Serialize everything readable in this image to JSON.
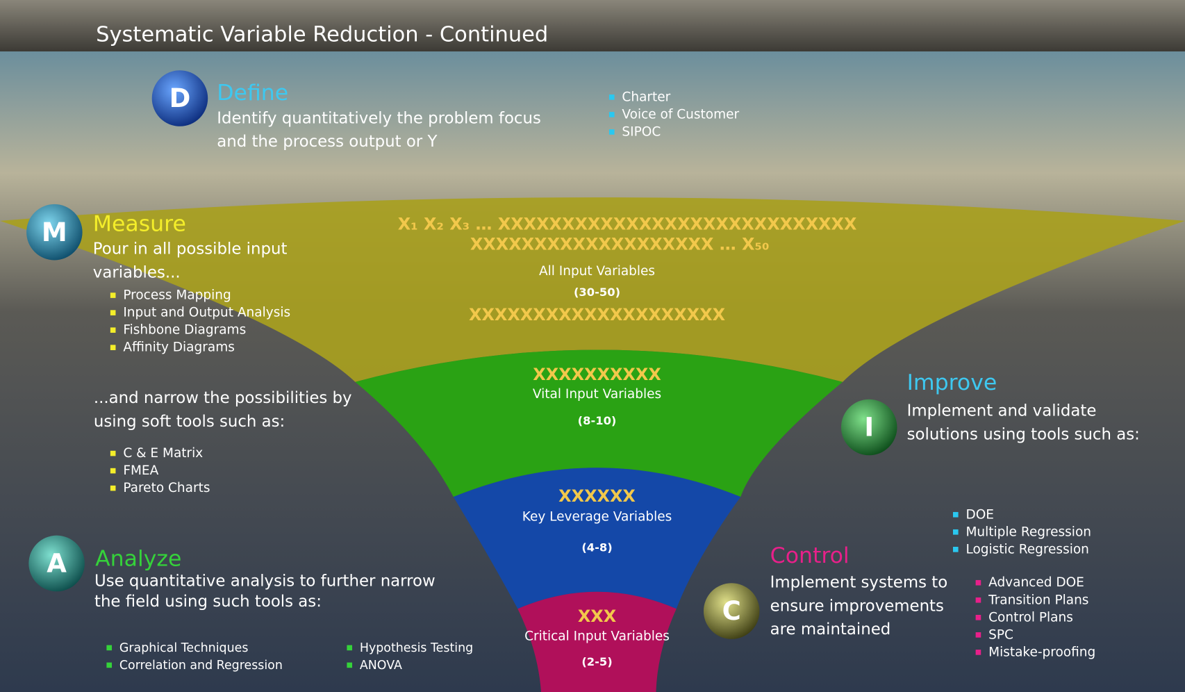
{
  "title": "Systematic Variable Reduction - Continued",
  "define": {
    "letter": "D",
    "name": "Define",
    "description": [
      "Identify quantitatively the problem focus",
      "and the process output or Y"
    ],
    "tools": [
      "Charter",
      "Voice of Customer",
      "SIPOC"
    ]
  },
  "measure": {
    "letter": "M",
    "name": "Measure",
    "description": [
      "Pour in all possible input",
      "variables..."
    ],
    "tools": [
      "Process Mapping",
      "Input and Output Analysis",
      "Fishbone Diagrams",
      "Affinity Diagrams"
    ],
    "narrow_text": [
      "...and narrow the possibilities by",
      "using soft tools such as:"
    ],
    "soft_tools": [
      "C & E Matrix",
      "FMEA",
      "Pareto Charts"
    ]
  },
  "analyze": {
    "letter": "A",
    "name": "Analyze",
    "description": [
      "Use quantitative analysis to further narrow",
      "the field using such tools as:"
    ],
    "tools": [
      "Graphical Techniques",
      "Correlation and Regression",
      "Hypothesis Testing",
      "ANOVA"
    ]
  },
  "improve": {
    "letter": "I",
    "name": "Improve",
    "description": [
      "Implement and validate",
      "solutions using tools such as:"
    ],
    "tools": [
      "DOE",
      "Multiple Regression",
      "Logistic Regression"
    ]
  },
  "control": {
    "letter": "C",
    "name": "Control",
    "description": [
      "Implement systems to",
      "ensure improvements",
      "are maintained"
    ],
    "tools": [
      "Advanced DOE",
      "Transition Plans",
      "Control Plans",
      "SPC",
      "Mistake-proofing"
    ]
  },
  "funnel": [
    {
      "variables": [
        "X₁ X₂ X₃ … XXXXXXXXXXXXXXXXXXXXXXXXXXXX",
        "XXXXXXXXXXXXXXXXXXX … X₅₀"
      ],
      "label": "All Input Variables",
      "range": "(30-50)",
      "variables_after": "XXXXXXXXXXXXXXXXXXXX"
    },
    {
      "variables": [
        "XXXXXXXXXX"
      ],
      "label": "Vital Input Variables",
      "range": "(8-10)"
    },
    {
      "variables": [
        "XXXXXX"
      ],
      "label": "Key Leverage Variables",
      "range": "(4-8)"
    },
    {
      "variables": [
        "XXX"
      ],
      "label": "Critical Input Variables",
      "range": "(2-5)"
    }
  ]
}
